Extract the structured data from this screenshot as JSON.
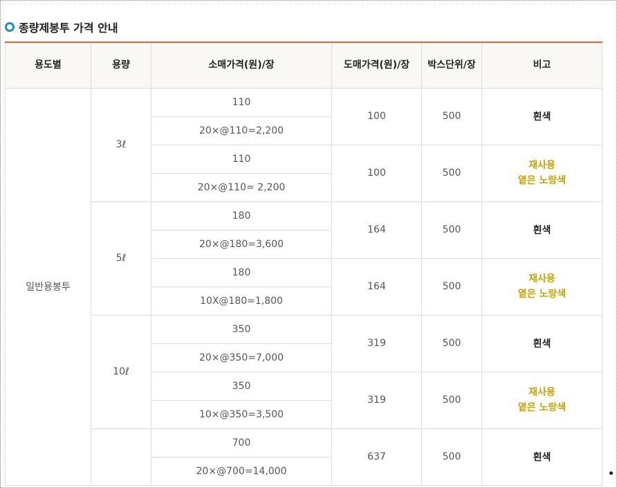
{
  "heading": {
    "icon": "circle-bullet-icon",
    "title": "종량제봉투 가격 안내"
  },
  "table": {
    "headers": [
      "용도별",
      "용량",
      "소매가격(원)/장",
      "도매가격(원)/장",
      "박스단위/장",
      "비고"
    ],
    "usage": "일반용봉투",
    "volumes": [
      "3ℓ",
      "5ℓ",
      "10ℓ"
    ],
    "rows": [
      {
        "retail_unit": "110",
        "retail_pack": "20×@110=2,200",
        "wholesale": "100",
        "box": "500",
        "note_lines": [
          "흰색"
        ],
        "note_type": "white"
      },
      {
        "retail_unit": "110",
        "retail_pack": "20×@110= 2,200",
        "wholesale": "100",
        "box": "500",
        "note_lines": [
          "재사용",
          "옅은 노랑색"
        ],
        "note_type": "yellow"
      },
      {
        "retail_unit": "180",
        "retail_pack": "20×@180=3,600",
        "wholesale": "164",
        "box": "500",
        "note_lines": [
          "흰색"
        ],
        "note_type": "white"
      },
      {
        "retail_unit": "180",
        "retail_pack": "10X@180=1,800",
        "wholesale": "164",
        "box": "500",
        "note_lines": [
          "재사용",
          "옅은 노랑색"
        ],
        "note_type": "yellow"
      },
      {
        "retail_unit": "350",
        "retail_pack": "20×@350=7,000",
        "wholesale": "319",
        "box": "500",
        "note_lines": [
          "흰색"
        ],
        "note_type": "white"
      },
      {
        "retail_unit": "350",
        "retail_pack": "10×@350=3,500",
        "wholesale": "319",
        "box": "500",
        "note_lines": [
          "재사용",
          "옅은 노랑색"
        ],
        "note_type": "yellow"
      },
      {
        "retail_unit": "700",
        "retail_pack": "20×@700=14,000",
        "wholesale": "637",
        "box": "500",
        "note_lines": [
          "흰색"
        ],
        "note_type": "white"
      }
    ]
  },
  "colors": {
    "accent_line": "#d7652b",
    "bullet": "#1a8fd6",
    "yellow_note": "#c7a200"
  }
}
